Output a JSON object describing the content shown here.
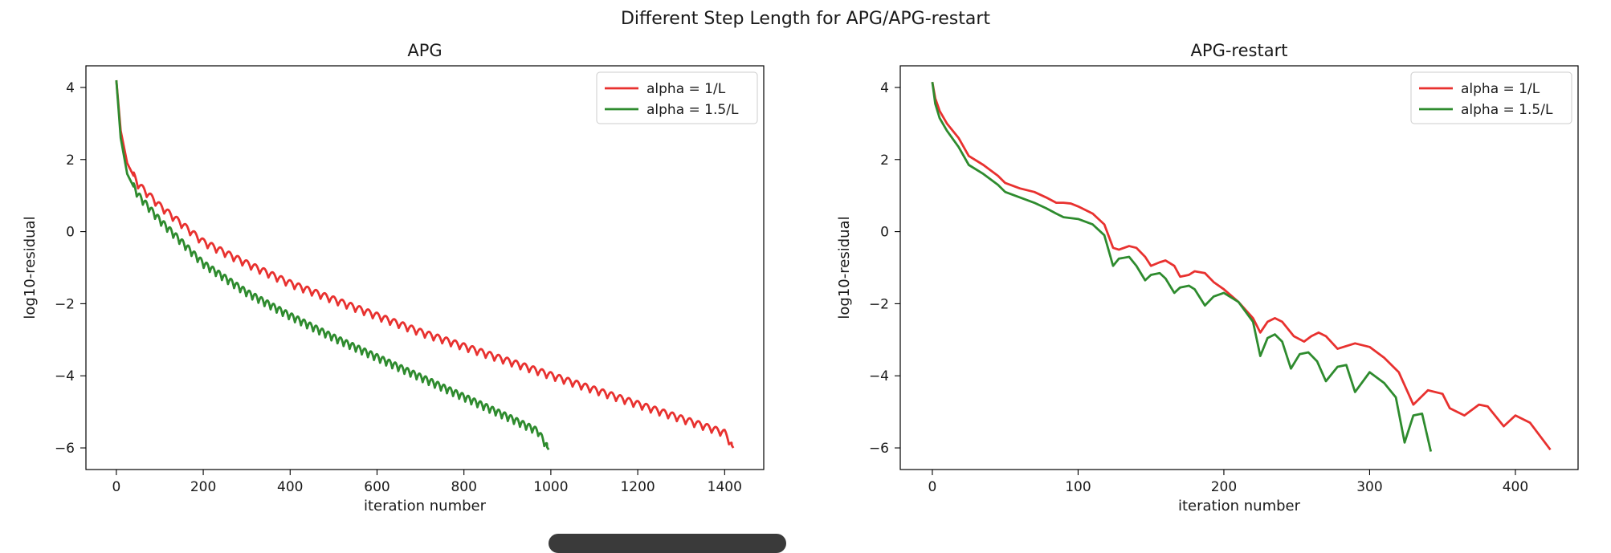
{
  "suptitle": "Different Step Length for APG/APG-restart",
  "chart_data": [
    {
      "type": "line",
      "title": "APG",
      "xlabel": "iteration number",
      "ylabel": "log10-residual",
      "xlim": [
        -70,
        1490
      ],
      "ylim": [
        -6.6,
        4.6
      ],
      "xticks": [
        0,
        200,
        400,
        600,
        800,
        1000,
        1200,
        1400
      ],
      "yticks": [
        -6,
        -4,
        -2,
        0,
        2,
        4
      ],
      "grid": false,
      "legend_position": "top-right",
      "series": [
        {
          "name": "alpha = 1/L",
          "color": "#e8312f",
          "x": [
            0,
            10,
            25,
            50,
            100,
            200,
            300,
            400,
            500,
            600,
            700,
            800,
            900,
            1000,
            1100,
            1200,
            1300,
            1400,
            1420
          ],
          "y": [
            4.2,
            2.8,
            1.9,
            1.3,
            0.7,
            -0.3,
            -0.9,
            -1.45,
            -1.9,
            -2.35,
            -2.8,
            -3.2,
            -3.6,
            -4.0,
            -4.4,
            -4.8,
            -5.2,
            -5.6,
            -6.0
          ],
          "oscillation": {
            "start": 40,
            "period": 20,
            "amplitude": 0.2
          }
        },
        {
          "name": "alpha = 1.5/L",
          "color": "#2e8b2e",
          "x": [
            0,
            10,
            25,
            50,
            100,
            200,
            300,
            400,
            500,
            600,
            700,
            800,
            900,
            970,
            995
          ],
          "y": [
            4.2,
            2.6,
            1.6,
            1.0,
            0.3,
            -0.9,
            -1.7,
            -2.35,
            -2.95,
            -3.5,
            -4.05,
            -4.6,
            -5.15,
            -5.55,
            -6.05
          ],
          "oscillation": {
            "start": 40,
            "period": 14,
            "amplitude": 0.2
          }
        }
      ]
    },
    {
      "type": "line",
      "title": "APG-restart",
      "xlabel": "iteration number",
      "ylabel": "log10-residual",
      "xlim": [
        -22,
        443
      ],
      "ylim": [
        -6.6,
        4.6
      ],
      "xticks": [
        0,
        100,
        200,
        300,
        400
      ],
      "yticks": [
        -6,
        -4,
        -2,
        0,
        2,
        4
      ],
      "grid": false,
      "legend_position": "top-right",
      "series": [
        {
          "name": "alpha = 1/L",
          "color": "#e8312f",
          "x": [
            0,
            2,
            5,
            10,
            18,
            25,
            35,
            45,
            50,
            60,
            70,
            78,
            85,
            90,
            95,
            100,
            110,
            118,
            124,
            128,
            135,
            140,
            146,
            150,
            156,
            160,
            166,
            170,
            176,
            180,
            187,
            193,
            200,
            210,
            220,
            225,
            230,
            235,
            240,
            248,
            255,
            260,
            265,
            270,
            278,
            282,
            290,
            300,
            310,
            320,
            330,
            340,
            350,
            355,
            365,
            375,
            381,
            385,
            392,
            400,
            410,
            424
          ],
          "y": [
            4.15,
            3.7,
            3.35,
            3.0,
            2.6,
            2.1,
            1.85,
            1.55,
            1.35,
            1.2,
            1.1,
            0.95,
            0.8,
            0.8,
            0.78,
            0.7,
            0.5,
            0.2,
            -0.45,
            -0.5,
            -0.4,
            -0.45,
            -0.7,
            -0.95,
            -0.85,
            -0.8,
            -0.95,
            -1.25,
            -1.2,
            -1.1,
            -1.15,
            -1.4,
            -1.6,
            -1.95,
            -2.4,
            -2.8,
            -2.5,
            -2.4,
            -2.5,
            -2.9,
            -3.05,
            -2.9,
            -2.8,
            -2.9,
            -3.25,
            -3.2,
            -3.1,
            -3.2,
            -3.5,
            -3.9,
            -4.8,
            -4.4,
            -4.5,
            -4.9,
            -5.1,
            -4.8,
            -4.85,
            -5.05,
            -5.4,
            -5.1,
            -5.3,
            -6.05
          ],
          "oscillation": null
        },
        {
          "name": "alpha = 1.5/L",
          "color": "#2e8b2e",
          "x": [
            0,
            2,
            5,
            10,
            18,
            25,
            35,
            45,
            50,
            60,
            70,
            78,
            85,
            90,
            100,
            110,
            118,
            124,
            128,
            135,
            140,
            146,
            150,
            156,
            160,
            166,
            170,
            176,
            180,
            187,
            193,
            200,
            210,
            220,
            225,
            230,
            235,
            240,
            246,
            252,
            258,
            264,
            270,
            278,
            284,
            290,
            300,
            310,
            318,
            324,
            330,
            336,
            342
          ],
          "y": [
            4.15,
            3.55,
            3.15,
            2.8,
            2.35,
            1.85,
            1.6,
            1.3,
            1.1,
            0.95,
            0.8,
            0.65,
            0.5,
            0.4,
            0.35,
            0.2,
            -0.1,
            -0.95,
            -0.75,
            -0.7,
            -0.95,
            -1.35,
            -1.2,
            -1.15,
            -1.3,
            -1.7,
            -1.55,
            -1.5,
            -1.6,
            -2.05,
            -1.8,
            -1.7,
            -1.95,
            -2.5,
            -3.45,
            -2.95,
            -2.85,
            -3.05,
            -3.8,
            -3.4,
            -3.35,
            -3.6,
            -4.15,
            -3.75,
            -3.7,
            -4.45,
            -3.9,
            -4.2,
            -4.6,
            -5.85,
            -5.1,
            -5.05,
            -6.1
          ],
          "oscillation": null
        }
      ]
    }
  ]
}
